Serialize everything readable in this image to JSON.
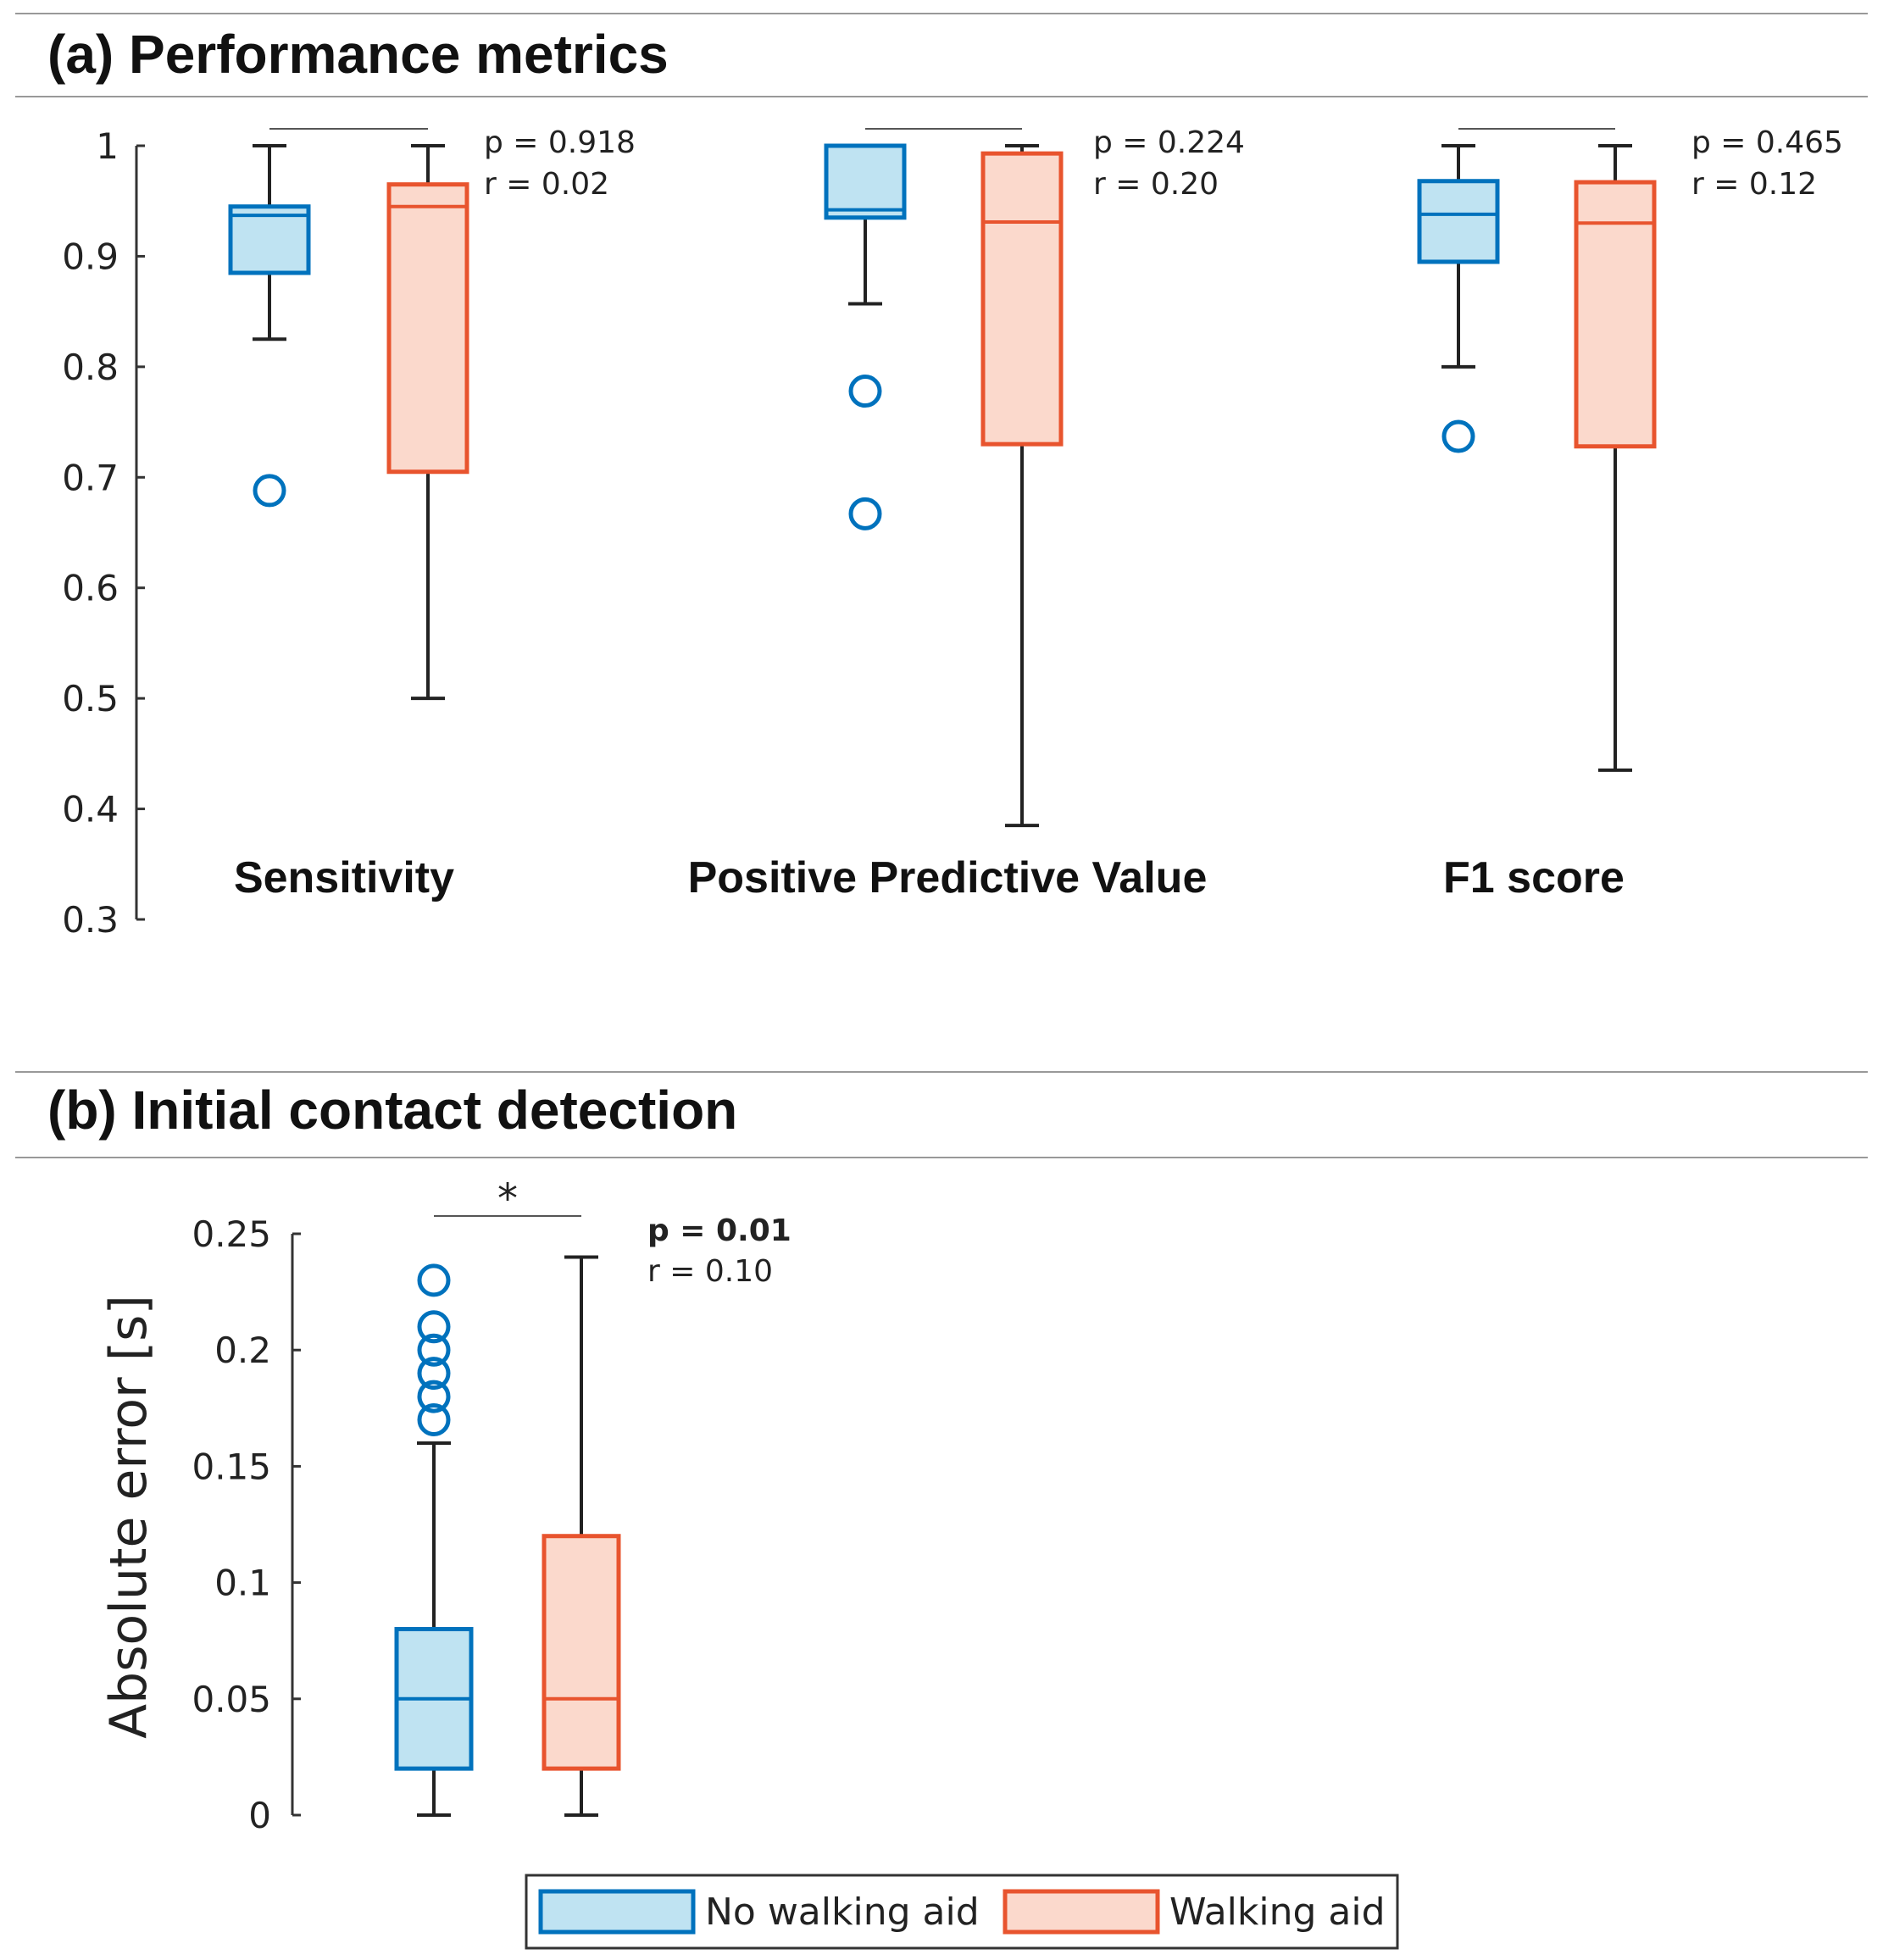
{
  "chart_data": [
    {
      "type": "box",
      "panel": "a",
      "title": "(a) Performance metrics",
      "ylim": [
        0.3,
        1
      ],
      "yticks": [
        "0.3",
        "0.4",
        "0.5",
        "0.6",
        "0.7",
        "0.8",
        "0.9",
        "1"
      ],
      "ylabel": "",
      "categories": [
        {
          "label": "Sensitivity",
          "p_text": "p = 0.918",
          "r_text": "r =  0.02",
          "significant": false,
          "groups": [
            {
              "series": "No walking aid",
              "whisker_low": 0.825,
              "q1": 0.885,
              "median": 0.937,
              "q3": 0.945,
              "whisker_high": 1.0,
              "outliers": [
                0.688
              ]
            },
            {
              "series": "Walking aid",
              "whisker_low": 0.5,
              "q1": 0.705,
              "median": 0.945,
              "q3": 0.965,
              "whisker_high": 1.0,
              "outliers": []
            }
          ]
        },
        {
          "label": "Positive Predictive Value",
          "p_text": "p = 0.224",
          "r_text": "r =  0.20",
          "significant": false,
          "groups": [
            {
              "series": "No walking aid",
              "whisker_low": 0.857,
              "q1": 0.935,
              "median": 0.942,
              "q3": 1.0,
              "whisker_high": 1.0,
              "outliers": [
                0.778,
                0.667
              ]
            },
            {
              "series": "Walking aid",
              "whisker_low": 0.385,
              "q1": 0.73,
              "median": 0.931,
              "q3": 0.993,
              "whisker_high": 1.0,
              "outliers": []
            }
          ]
        },
        {
          "label": "F1 score",
          "p_text": "p = 0.465",
          "r_text": "r =  0.12",
          "significant": false,
          "groups": [
            {
              "series": "No walking aid",
              "whisker_low": 0.8,
              "q1": 0.895,
              "median": 0.938,
              "q3": 0.968,
              "whisker_high": 1.0,
              "outliers": [
                0.737
              ]
            },
            {
              "series": "Walking aid",
              "whisker_low": 0.435,
              "q1": 0.728,
              "median": 0.93,
              "q3": 0.967,
              "whisker_high": 1.0,
              "outliers": []
            }
          ]
        }
      ]
    },
    {
      "type": "box",
      "panel": "b",
      "title": "(b) Initial contact detection",
      "ylim": [
        0,
        0.25
      ],
      "yticks": [
        "0",
        "0.05",
        "0.1",
        "0.15",
        "0.2",
        "0.25"
      ],
      "ylabel": "Absolute error [s]",
      "categories": [
        {
          "label": "",
          "p_text": "p = 0.01",
          "r_text": "r =  0.10",
          "significant": true,
          "sig_marker": "*",
          "groups": [
            {
              "series": "No walking aid",
              "whisker_low": 0.0,
              "q1": 0.02,
              "median": 0.05,
              "q3": 0.08,
              "whisker_high": 0.16,
              "outliers": [
                0.17,
                0.18,
                0.19,
                0.2,
                0.21,
                0.23
              ]
            },
            {
              "series": "Walking aid",
              "whisker_low": 0.0,
              "q1": 0.02,
              "median": 0.05,
              "q3": 0.12,
              "whisker_high": 0.24,
              "outliers": []
            }
          ]
        }
      ]
    }
  ],
  "legend": {
    "position": "bottom-center",
    "items": [
      {
        "label": "No walking aid",
        "stroke": "#0072BD",
        "fill": "#BFE3F2"
      },
      {
        "label": "Walking aid",
        "stroke": "#E8542E",
        "fill": "#FBD9CC"
      }
    ]
  },
  "colors": {
    "axis": "#333333",
    "whisker": "#222222",
    "rule": "#999999"
  }
}
